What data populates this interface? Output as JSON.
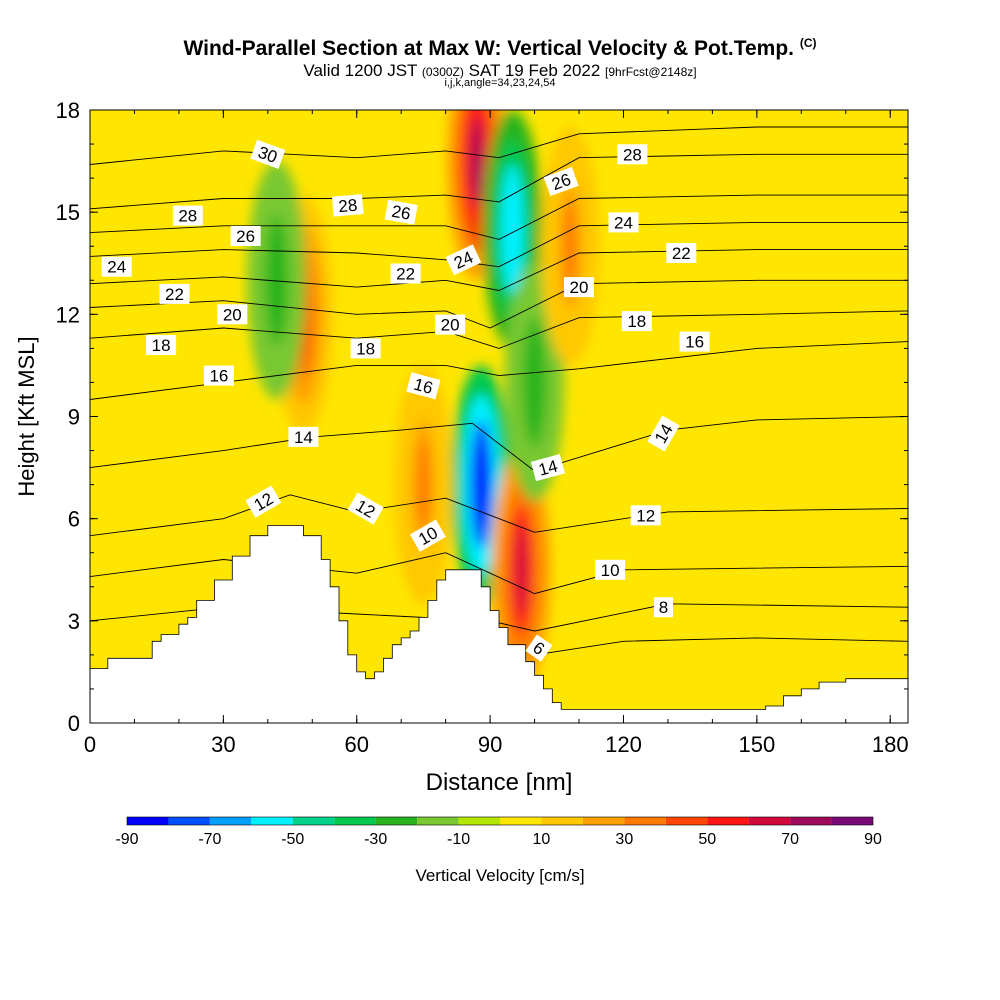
{
  "title": {
    "main": "Wind-Parallel Section at Max W: Vertical Velocity & Pot.Temp.",
    "main_unit": "(C)",
    "valid_prefix": "Valid 1200 JST",
    "valid_utc": "(0300Z)",
    "valid_date": "SAT 19 Feb 2022",
    "forecast": "[9hrFcst@2148z]",
    "indices": "i,j,k,angle=34,23,24,54"
  },
  "chart_data": {
    "type": "heatmap",
    "xlabel": "Distance [nm]",
    "ylabel": "Height [Kft MSL]",
    "xlim": [
      0,
      184
    ],
    "ylim": [
      0,
      18
    ],
    "x_ticks": [
      0,
      30,
      60,
      90,
      120,
      150,
      180
    ],
    "y_ticks": [
      0,
      3,
      6,
      9,
      12,
      15,
      18
    ],
    "colorbar": {
      "label": "Vertical Velocity [cm/s]",
      "tick_labels": [
        -90,
        -70,
        -50,
        -30,
        -10,
        10,
        30,
        50,
        70,
        90
      ],
      "colors": [
        "#0000ff",
        "#0050ff",
        "#00a0ff",
        "#00f0ff",
        "#00d28c",
        "#00c850",
        "#28b41e",
        "#78c832",
        "#b4e600",
        "#ffe600",
        "#ffc800",
        "#ffa000",
        "#ff7800",
        "#ff4600",
        "#ff1414",
        "#d20a3c",
        "#a00a5a",
        "#780a78"
      ]
    },
    "terrain_top_kft": [
      [
        0,
        1.6
      ],
      [
        4,
        1.9
      ],
      [
        10,
        1.9
      ],
      [
        14,
        2.4
      ],
      [
        16,
        2.6
      ],
      [
        20,
        2.9
      ],
      [
        22,
        3.1
      ],
      [
        24,
        3.6
      ],
      [
        28,
        4.2
      ],
      [
        32,
        4.9
      ],
      [
        36,
        5.5
      ],
      [
        40,
        5.8
      ],
      [
        44,
        5.8
      ],
      [
        48,
        5.5
      ],
      [
        52,
        4.8
      ],
      [
        54,
        4.0
      ],
      [
        56,
        3.0
      ],
      [
        58,
        2.0
      ],
      [
        60,
        1.5
      ],
      [
        62,
        1.3
      ],
      [
        64,
        1.5
      ],
      [
        66,
        1.9
      ],
      [
        68,
        2.3
      ],
      [
        70,
        2.5
      ],
      [
        72,
        2.7
      ],
      [
        74,
        3.1
      ],
      [
        76,
        3.6
      ],
      [
        78,
        4.2
      ],
      [
        80,
        4.5
      ],
      [
        86,
        4.5
      ],
      [
        88,
        4.0
      ],
      [
        90,
        3.3
      ],
      [
        92,
        2.8
      ],
      [
        94,
        2.3
      ],
      [
        98,
        1.8
      ],
      [
        100,
        1.4
      ],
      [
        102,
        1.0
      ],
      [
        104,
        0.6
      ],
      [
        106,
        0.4
      ],
      [
        120,
        0.4
      ],
      [
        140,
        0.4
      ],
      [
        152,
        0.5
      ],
      [
        156,
        0.8
      ],
      [
        160,
        1.0
      ],
      [
        164,
        1.2
      ],
      [
        170,
        1.3
      ],
      [
        184,
        1.3
      ]
    ],
    "vertical_velocity_features": [
      {
        "x": 87,
        "z": 16.5,
        "value": 70
      },
      {
        "x": 95,
        "z": 14.5,
        "value": -60
      },
      {
        "x": 88,
        "z": 7.0,
        "value": -90
      },
      {
        "x": 97,
        "z": 4.5,
        "value": 60
      },
      {
        "x": 48,
        "z": 12.0,
        "value": 40
      },
      {
        "x": 42,
        "z": 13.0,
        "value": -30
      },
      {
        "x": 75,
        "z": 7.0,
        "value": 30
      },
      {
        "x": 100,
        "z": 10.0,
        "value": -30
      },
      {
        "x": 108,
        "z": 14.0,
        "value": 30
      }
    ],
    "theta_contours": [
      {
        "label": "6",
        "value": 6,
        "points": [
          [
            100,
            2.0
          ],
          [
            120,
            2.4
          ],
          [
            150,
            2.5
          ],
          [
            184,
            2.4
          ]
        ]
      },
      {
        "label": "8",
        "value": 8,
        "points": [
          [
            0,
            3.0
          ],
          [
            30,
            3.4
          ],
          [
            60,
            3.2
          ],
          [
            90,
            3.0
          ],
          [
            100,
            2.7
          ],
          [
            130,
            3.5
          ],
          [
            184,
            3.4
          ]
        ]
      },
      {
        "label": "10",
        "value": 10,
        "points": [
          [
            0,
            4.3
          ],
          [
            30,
            4.8
          ],
          [
            60,
            4.4
          ],
          [
            80,
            5.0
          ],
          [
            100,
            3.8
          ],
          [
            120,
            4.5
          ],
          [
            184,
            4.6
          ]
        ]
      },
      {
        "label": "12",
        "value": 12,
        "points": [
          [
            0,
            5.5
          ],
          [
            30,
            6.0
          ],
          [
            45,
            6.7
          ],
          [
            60,
            6.2
          ],
          [
            80,
            6.6
          ],
          [
            100,
            5.6
          ],
          [
            130,
            6.2
          ],
          [
            184,
            6.3
          ]
        ]
      },
      {
        "label": "14",
        "value": 14,
        "points": [
          [
            0,
            7.5
          ],
          [
            30,
            8.0
          ],
          [
            50,
            8.4
          ],
          [
            70,
            8.6
          ],
          [
            86,
            8.8
          ],
          [
            100,
            7.4
          ],
          [
            130,
            8.6
          ],
          [
            150,
            8.9
          ],
          [
            184,
            9.0
          ]
        ]
      },
      {
        "label": "16",
        "value": 16,
        "points": [
          [
            0,
            9.5
          ],
          [
            30,
            10.0
          ],
          [
            60,
            10.5
          ],
          [
            80,
            10.5
          ],
          [
            92,
            10.2
          ],
          [
            110,
            10.4
          ],
          [
            150,
            11.0
          ],
          [
            184,
            11.2
          ]
        ]
      },
      {
        "label": "18",
        "value": 18,
        "points": [
          [
            0,
            11.3
          ],
          [
            30,
            11.6
          ],
          [
            60,
            11.3
          ],
          [
            80,
            11.5
          ],
          [
            92,
            11.0
          ],
          [
            110,
            11.9
          ],
          [
            150,
            12.0
          ],
          [
            184,
            12.1
          ]
        ]
      },
      {
        "label": "20",
        "value": 20,
        "points": [
          [
            0,
            12.2
          ],
          [
            30,
            12.4
          ],
          [
            60,
            12.0
          ],
          [
            80,
            12.1
          ],
          [
            90,
            11.6
          ],
          [
            110,
            12.9
          ],
          [
            150,
            13.0
          ],
          [
            184,
            13.0
          ]
        ]
      },
      {
        "label": "22",
        "value": 22,
        "points": [
          [
            0,
            12.9
          ],
          [
            30,
            13.1
          ],
          [
            60,
            12.8
          ],
          [
            80,
            13.0
          ],
          [
            92,
            12.7
          ],
          [
            110,
            13.8
          ],
          [
            150,
            13.9
          ],
          [
            184,
            13.9
          ]
        ]
      },
      {
        "label": "24",
        "value": 24,
        "points": [
          [
            0,
            13.7
          ],
          [
            30,
            13.9
          ],
          [
            60,
            13.8
          ],
          [
            80,
            13.6
          ],
          [
            92,
            13.4
          ],
          [
            110,
            14.6
          ],
          [
            150,
            14.7
          ],
          [
            184,
            14.7
          ]
        ]
      },
      {
        "label": "26",
        "value": 26,
        "points": [
          [
            0,
            14.4
          ],
          [
            30,
            14.6
          ],
          [
            60,
            14.6
          ],
          [
            80,
            14.6
          ],
          [
            92,
            14.2
          ],
          [
            110,
            15.4
          ],
          [
            150,
            15.5
          ],
          [
            184,
            15.5
          ]
        ]
      },
      {
        "label": "28",
        "value": 28,
        "points": [
          [
            0,
            15.1
          ],
          [
            30,
            15.4
          ],
          [
            60,
            15.4
          ],
          [
            80,
            15.5
          ],
          [
            92,
            15.3
          ],
          [
            110,
            16.6
          ],
          [
            150,
            16.7
          ],
          [
            184,
            16.7
          ]
        ]
      },
      {
        "label": "30",
        "value": 30,
        "points": [
          [
            0,
            16.4
          ],
          [
            30,
            16.8
          ],
          [
            60,
            16.6
          ],
          [
            80,
            16.8
          ],
          [
            92,
            16.6
          ],
          [
            110,
            17.3
          ],
          [
            150,
            17.5
          ],
          [
            184,
            17.5
          ]
        ]
      }
    ],
    "contour_labels": [
      {
        "text": "30",
        "x": 40,
        "z": 16.7,
        "angle": 20
      },
      {
        "text": "28",
        "x": 22,
        "z": 14.9,
        "angle": 0
      },
      {
        "text": "28",
        "x": 58,
        "z": 15.2,
        "angle": -5
      },
      {
        "text": "26",
        "x": 35,
        "z": 14.3,
        "angle": 0
      },
      {
        "text": "26",
        "x": 70,
        "z": 15.0,
        "angle": 10
      },
      {
        "text": "26",
        "x": 106,
        "z": 15.9,
        "angle": -20
      },
      {
        "text": "28",
        "x": 122,
        "z": 16.7,
        "angle": 0
      },
      {
        "text": "24",
        "x": 6,
        "z": 13.4,
        "angle": 0
      },
      {
        "text": "24",
        "x": 84,
        "z": 13.6,
        "angle": -25
      },
      {
        "text": "24",
        "x": 120,
        "z": 14.7,
        "angle": 0
      },
      {
        "text": "22",
        "x": 19,
        "z": 12.6,
        "angle": 0
      },
      {
        "text": "22",
        "x": 71,
        "z": 13.2,
        "angle": 0
      },
      {
        "text": "22",
        "x": 133,
        "z": 13.8,
        "angle": 0
      },
      {
        "text": "20",
        "x": 32,
        "z": 12.0,
        "angle": 0
      },
      {
        "text": "20",
        "x": 81,
        "z": 11.7,
        "angle": 0
      },
      {
        "text": "20",
        "x": 110,
        "z": 12.8,
        "angle": 0
      },
      {
        "text": "18",
        "x": 16,
        "z": 11.1,
        "angle": 0
      },
      {
        "text": "18",
        "x": 62,
        "z": 11.0,
        "angle": 0
      },
      {
        "text": "18",
        "x": 123,
        "z": 11.8,
        "angle": 0
      },
      {
        "text": "16",
        "x": 29,
        "z": 10.2,
        "angle": 0
      },
      {
        "text": "16",
        "x": 75,
        "z": 9.9,
        "angle": 15
      },
      {
        "text": "16",
        "x": 136,
        "z": 11.2,
        "angle": 0
      },
      {
        "text": "14",
        "x": 48,
        "z": 8.4,
        "angle": 0
      },
      {
        "text": "14",
        "x": 103,
        "z": 7.5,
        "angle": -15
      },
      {
        "text": "14",
        "x": 129,
        "z": 8.5,
        "angle": -60
      },
      {
        "text": "12",
        "x": 39,
        "z": 6.5,
        "angle": -30
      },
      {
        "text": "12",
        "x": 62,
        "z": 6.3,
        "angle": 30
      },
      {
        "text": "12",
        "x": 125,
        "z": 6.1,
        "angle": 0
      },
      {
        "text": "10",
        "x": 76,
        "z": 5.5,
        "angle": -30
      },
      {
        "text": "10",
        "x": 117,
        "z": 4.5,
        "angle": 0
      },
      {
        "text": "8",
        "x": 129,
        "z": 3.4,
        "angle": 0
      },
      {
        "text": "6",
        "x": 101,
        "z": 2.2,
        "angle": 35
      }
    ]
  }
}
